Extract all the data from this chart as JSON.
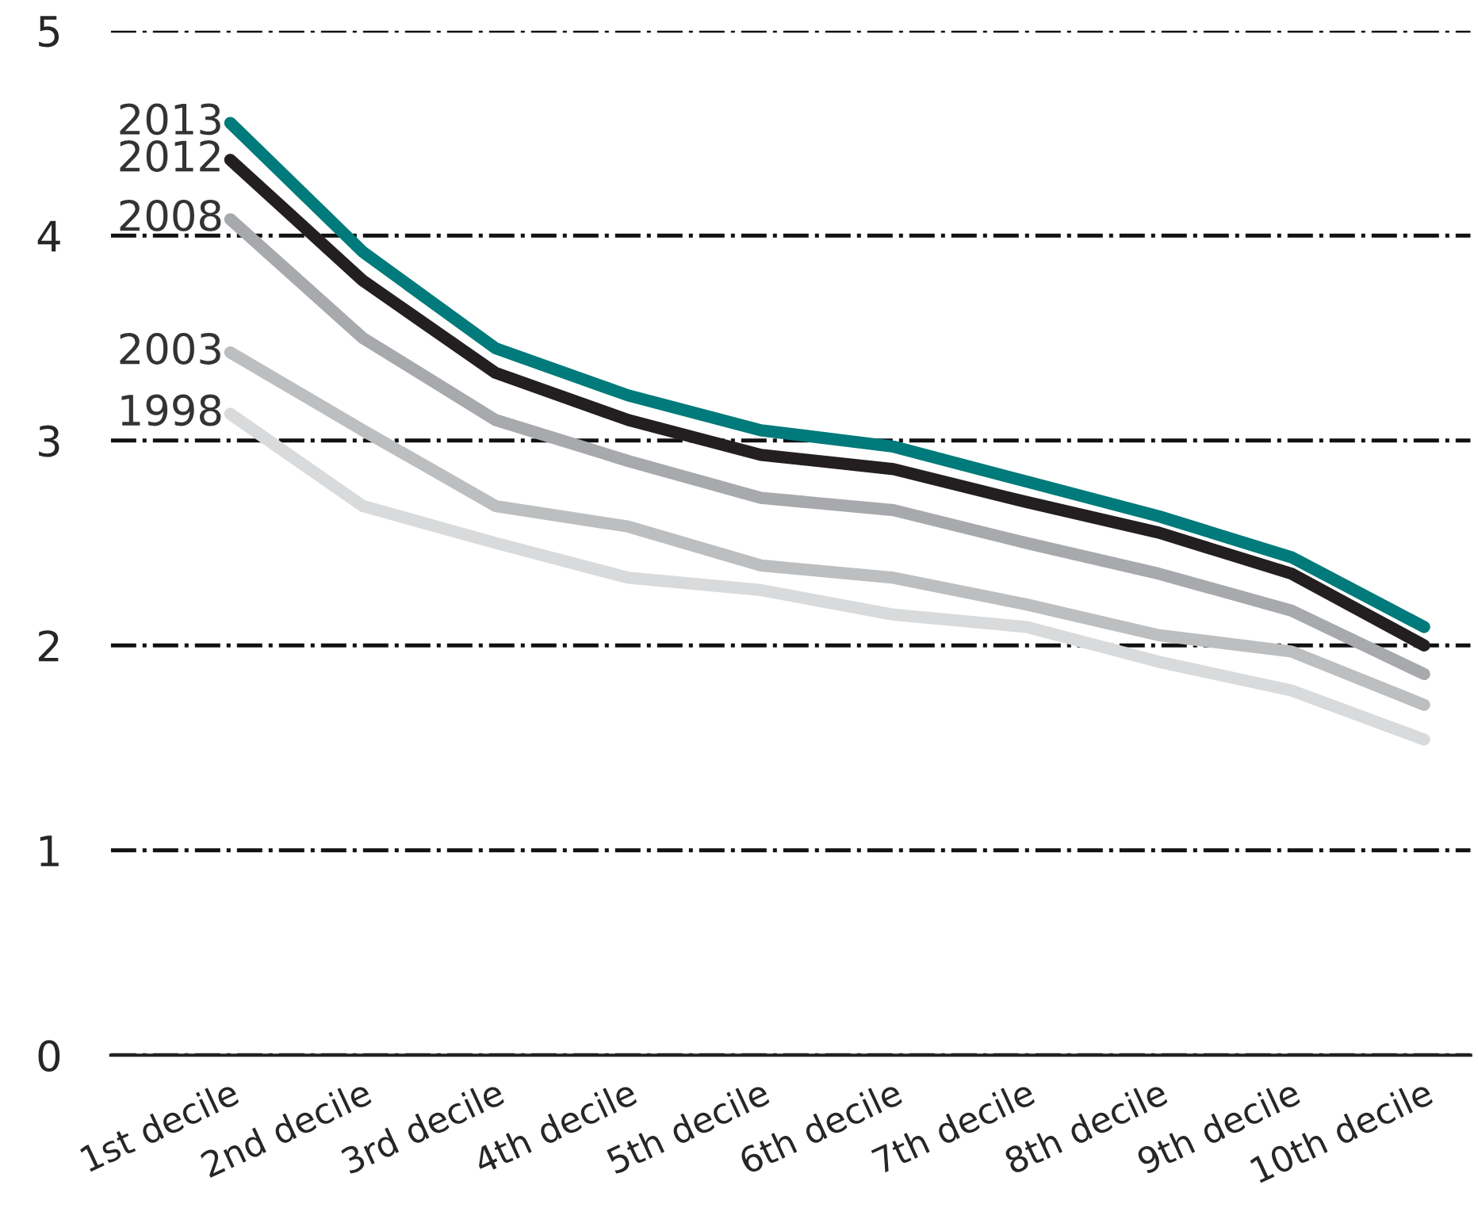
{
  "chart_data": {
    "type": "line",
    "categories": [
      "1st decile",
      "2nd decile",
      "3rd decile",
      "4th decile",
      "5th decile",
      "6th decile",
      "7th decile",
      "8th decile",
      "9th decile",
      "10th decile"
    ],
    "series": [
      {
        "name": "1998",
        "color": "#d9dadb",
        "values": [
          3.13,
          2.68,
          2.5,
          2.33,
          2.27,
          2.15,
          2.09,
          1.92,
          1.78,
          1.54
        ]
      },
      {
        "name": "2003",
        "color": "#bcbec0",
        "values": [
          3.43,
          3.05,
          2.68,
          2.58,
          2.39,
          2.33,
          2.2,
          2.05,
          1.97,
          1.71
        ]
      },
      {
        "name": "2008",
        "color": "#a7a9ac",
        "values": [
          4.08,
          3.5,
          3.1,
          2.9,
          2.72,
          2.66,
          2.5,
          2.35,
          2.17,
          1.86
        ]
      },
      {
        "name": "2012",
        "color": "#231f20",
        "values": [
          4.37,
          3.78,
          3.33,
          3.1,
          2.93,
          2.86,
          2.7,
          2.55,
          2.35,
          2.0
        ]
      },
      {
        "name": "2013",
        "color": "#007a7a",
        "values": [
          4.55,
          3.92,
          3.45,
          3.22,
          3.05,
          2.97,
          2.8,
          2.63,
          2.43,
          2.09
        ]
      }
    ],
    "ylim": [
      0,
      5
    ],
    "yticks": [
      0,
      1,
      2,
      3,
      4,
      5
    ],
    "grid": "y",
    "legend": false,
    "marker": "none",
    "line_style": "solid"
  }
}
